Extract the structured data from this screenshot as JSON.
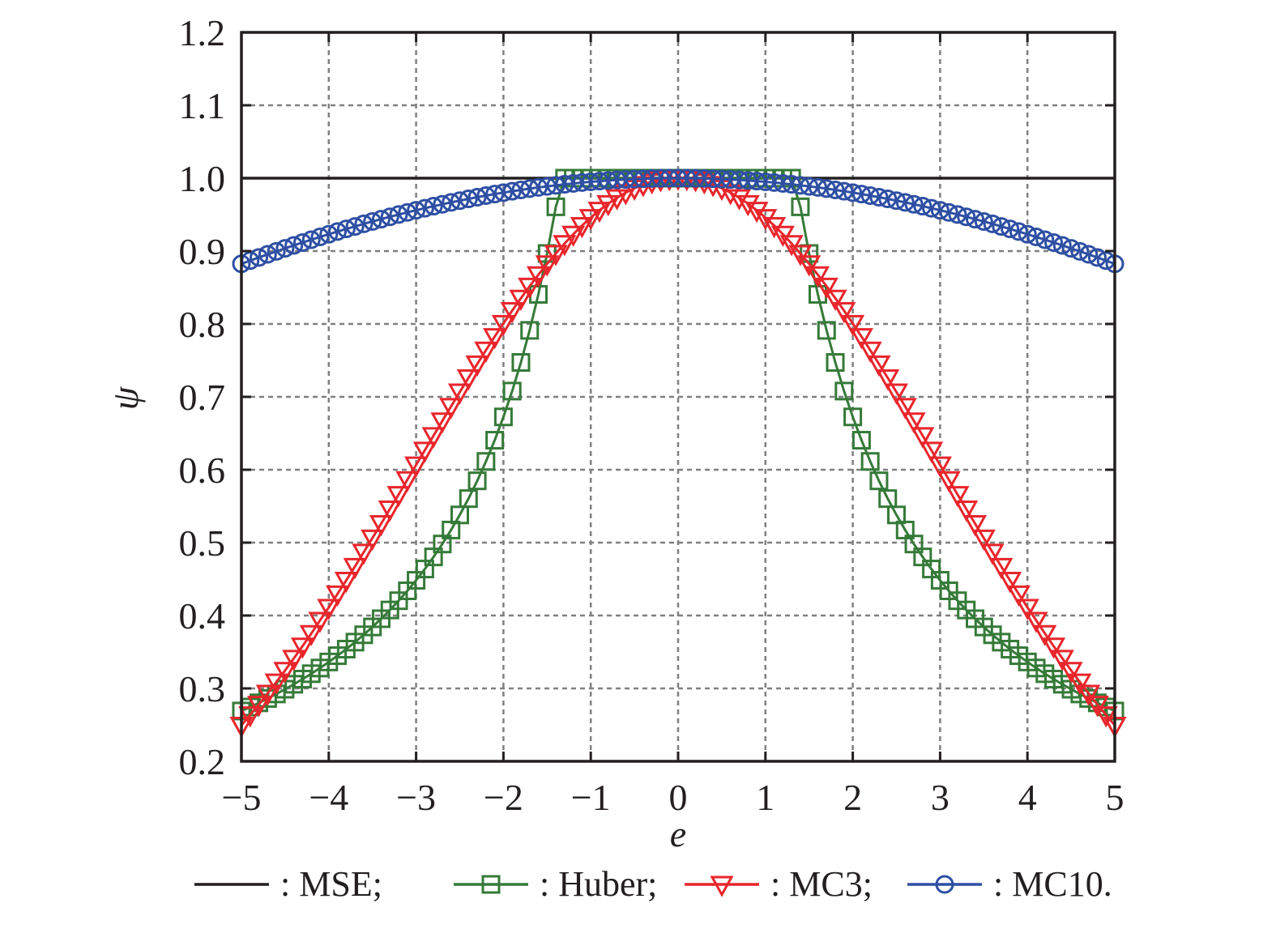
{
  "chart_data": {
    "type": "line",
    "title": "",
    "xlabel": "e",
    "ylabel": "ψ",
    "xlim": [
      -5,
      5
    ],
    "ylim": [
      0.2,
      1.2
    ],
    "grid": true,
    "legend_position": "bottom",
    "x_ticks": [
      -5,
      -4,
      -3,
      -2,
      -1,
      0,
      1,
      2,
      3,
      4,
      5
    ],
    "x_tick_labels": [
      "−5",
      "−4",
      "−3",
      "−2",
      "−1",
      "0",
      "1",
      "2",
      "3",
      "4",
      "5"
    ],
    "y_ticks": [
      0.2,
      0.3,
      0.4,
      0.5,
      0.6,
      0.7,
      0.8,
      0.9,
      1.0,
      1.1,
      1.2
    ],
    "y_tick_labels": [
      "0.2",
      "0.3",
      "0.4",
      "0.5",
      "0.6",
      "0.7",
      "0.8",
      "0.9",
      "1.0",
      "1.1",
      "1.2"
    ],
    "x": [
      -5.0,
      -4.9,
      -4.8,
      -4.7,
      -4.6,
      -4.5,
      -4.4,
      -4.3,
      -4.2,
      -4.1,
      -4.0,
      -3.9,
      -3.8,
      -3.7,
      -3.6,
      -3.5,
      -3.4,
      -3.3,
      -3.2,
      -3.1,
      -3.0,
      -2.9,
      -2.8,
      -2.7,
      -2.6,
      -2.5,
      -2.4,
      -2.3,
      -2.2,
      -2.1,
      -2.0,
      -1.9,
      -1.8,
      -1.7,
      -1.6,
      -1.5,
      -1.4,
      -1.3,
      -1.2,
      -1.1,
      -1.0,
      -0.9,
      -0.8,
      -0.7,
      -0.6,
      -0.5,
      -0.4,
      -0.3,
      -0.2,
      -0.1,
      0.0,
      0.1,
      0.2,
      0.3,
      0.4,
      0.5,
      0.6,
      0.7,
      0.8,
      0.9,
      1.0,
      1.1,
      1.2,
      1.3,
      1.4,
      1.5,
      1.6,
      1.7,
      1.8,
      1.9,
      2.0,
      2.1,
      2.2,
      2.3,
      2.4,
      2.5,
      2.6,
      2.7,
      2.8,
      2.9,
      3.0,
      3.1,
      3.2,
      3.3,
      3.4,
      3.5,
      3.6,
      3.7,
      3.8,
      3.9,
      4.0,
      4.1,
      4.2,
      4.3,
      4.4,
      4.5,
      4.6,
      4.7,
      4.8,
      4.9,
      5.0
    ],
    "series": [
      {
        "name": "MSE",
        "legend_label": ": MSE;",
        "color": "#231f20",
        "marker": "none",
        "values": [
          1,
          1,
          1,
          1,
          1,
          1,
          1,
          1,
          1,
          1,
          1,
          1,
          1,
          1,
          1,
          1,
          1,
          1,
          1,
          1,
          1,
          1,
          1,
          1,
          1,
          1,
          1,
          1,
          1,
          1,
          1,
          1,
          1,
          1,
          1,
          1,
          1,
          1,
          1,
          1,
          1,
          1,
          1,
          1,
          1,
          1,
          1,
          1,
          1,
          1,
          1,
          1,
          1,
          1,
          1,
          1,
          1,
          1,
          1,
          1,
          1,
          1,
          1,
          1,
          1,
          1,
          1,
          1,
          1,
          1,
          1,
          1,
          1,
          1,
          1,
          1,
          1,
          1,
          1,
          1,
          1,
          1,
          1,
          1,
          1,
          1,
          1,
          1,
          1,
          1,
          1,
          1,
          1,
          1,
          1,
          1,
          1,
          1,
          1,
          1,
          1
        ]
      },
      {
        "name": "Huber",
        "legend_label": ": Huber;",
        "color": "#357a38",
        "marker": "square",
        "values": [
          0.269,
          0.2745,
          0.2802,
          0.2862,
          0.2924,
          0.2989,
          0.3057,
          0.3128,
          0.3202,
          0.328,
          0.3363,
          0.3449,
          0.3539,
          0.3635,
          0.3736,
          0.3843,
          0.3956,
          0.4076,
          0.4203,
          0.4339,
          0.4483,
          0.4638,
          0.4804,
          0.4981,
          0.5173,
          0.538,
          0.5604,
          0.5848,
          0.6114,
          0.6405,
          0.6725,
          0.7079,
          0.7472,
          0.7912,
          0.8406,
          0.8967,
          0.9607,
          1,
          1,
          1,
          1,
          1,
          1,
          1,
          1,
          1,
          1,
          1,
          1,
          1,
          1,
          1,
          1,
          1,
          1,
          1,
          1,
          1,
          1,
          1,
          1,
          1,
          1,
          1,
          0.9607,
          0.8967,
          0.8406,
          0.7912,
          0.7472,
          0.7079,
          0.6725,
          0.6405,
          0.6114,
          0.5848,
          0.5604,
          0.538,
          0.5173,
          0.4981,
          0.4804,
          0.4638,
          0.4483,
          0.4339,
          0.4203,
          0.4076,
          0.3956,
          0.3843,
          0.3736,
          0.3635,
          0.3539,
          0.3449,
          0.3363,
          0.328,
          0.3202,
          0.3128,
          0.3057,
          0.2989,
          0.2924,
          0.2862,
          0.2802,
          0.2745,
          0.269
        ]
      },
      {
        "name": "MC3",
        "legend_label": ": MC3;",
        "color": "#e8262c",
        "marker": "triangle-down",
        "values": [
          0.2494,
          0.2637,
          0.2782,
          0.2933,
          0.3087,
          0.3247,
          0.3412,
          0.358,
          0.3753,
          0.3934,
          0.4111,
          0.4296,
          0.4483,
          0.4673,
          0.4868,
          0.5063,
          0.5261,
          0.5461,
          0.566,
          0.5864,
          0.6065,
          0.6268,
          0.6468,
          0.667,
          0.6868,
          0.7066,
          0.7261,
          0.7451,
          0.7641,
          0.7827,
          0.8007,
          0.8183,
          0.8353,
          0.8518,
          0.8675,
          0.8825,
          0.8967,
          0.9103,
          0.9231,
          0.935,
          0.946,
          0.956,
          0.9651,
          0.9732,
          0.9802,
          0.9862,
          0.9912,
          0.995,
          0.9978,
          0.9994,
          1.0,
          0.9994,
          0.9978,
          0.995,
          0.9912,
          0.9862,
          0.9802,
          0.9732,
          0.9651,
          0.956,
          0.946,
          0.935,
          0.9231,
          0.9103,
          0.8967,
          0.8825,
          0.8675,
          0.8518,
          0.8353,
          0.8183,
          0.8007,
          0.7827,
          0.7641,
          0.7451,
          0.7261,
          0.7066,
          0.6868,
          0.667,
          0.6468,
          0.6268,
          0.6065,
          0.5864,
          0.566,
          0.5461,
          0.5261,
          0.5063,
          0.4868,
          0.4673,
          0.4483,
          0.4296,
          0.4111,
          0.3934,
          0.3753,
          0.358,
          0.3412,
          0.3247,
          0.3087,
          0.2933,
          0.2782,
          0.2637,
          0.2494
        ]
      },
      {
        "name": "MC10",
        "legend_label": ": MC10.",
        "color": "#2e4fa3",
        "marker": "circle",
        "values": [
          0.8825,
          0.8869,
          0.8912,
          0.8955,
          0.8996,
          0.9037,
          0.9078,
          0.9117,
          0.9156,
          0.9194,
          0.9231,
          0.9268,
          0.9304,
          0.9338,
          0.9373,
          0.9406,
          0.9438,
          0.947,
          0.9501,
          0.9531,
          0.956,
          0.9588,
          0.9616,
          0.9642,
          0.9668,
          0.9692,
          0.9716,
          0.9739,
          0.9761,
          0.9782,
          0.9802,
          0.9821,
          0.9839,
          0.9857,
          0.9873,
          0.9888,
          0.9902,
          0.9916,
          0.9928,
          0.994,
          0.995,
          0.996,
          0.9968,
          0.9976,
          0.9982,
          0.9988,
          0.9992,
          0.9996,
          0.9998,
          1.0,
          1.0,
          1.0,
          0.9998,
          0.9996,
          0.9992,
          0.9988,
          0.9982,
          0.9976,
          0.9968,
          0.996,
          0.995,
          0.994,
          0.9928,
          0.9916,
          0.9902,
          0.9888,
          0.9873,
          0.9857,
          0.9839,
          0.9821,
          0.9802,
          0.9782,
          0.9761,
          0.9739,
          0.9716,
          0.9692,
          0.9668,
          0.9642,
          0.9616,
          0.9588,
          0.956,
          0.9531,
          0.9501,
          0.947,
          0.9438,
          0.9406,
          0.9373,
          0.9338,
          0.9304,
          0.9268,
          0.9231,
          0.9194,
          0.9156,
          0.9117,
          0.9078,
          0.9037,
          0.8996,
          0.8955,
          0.8912,
          0.8869,
          0.8825
        ]
      }
    ]
  }
}
